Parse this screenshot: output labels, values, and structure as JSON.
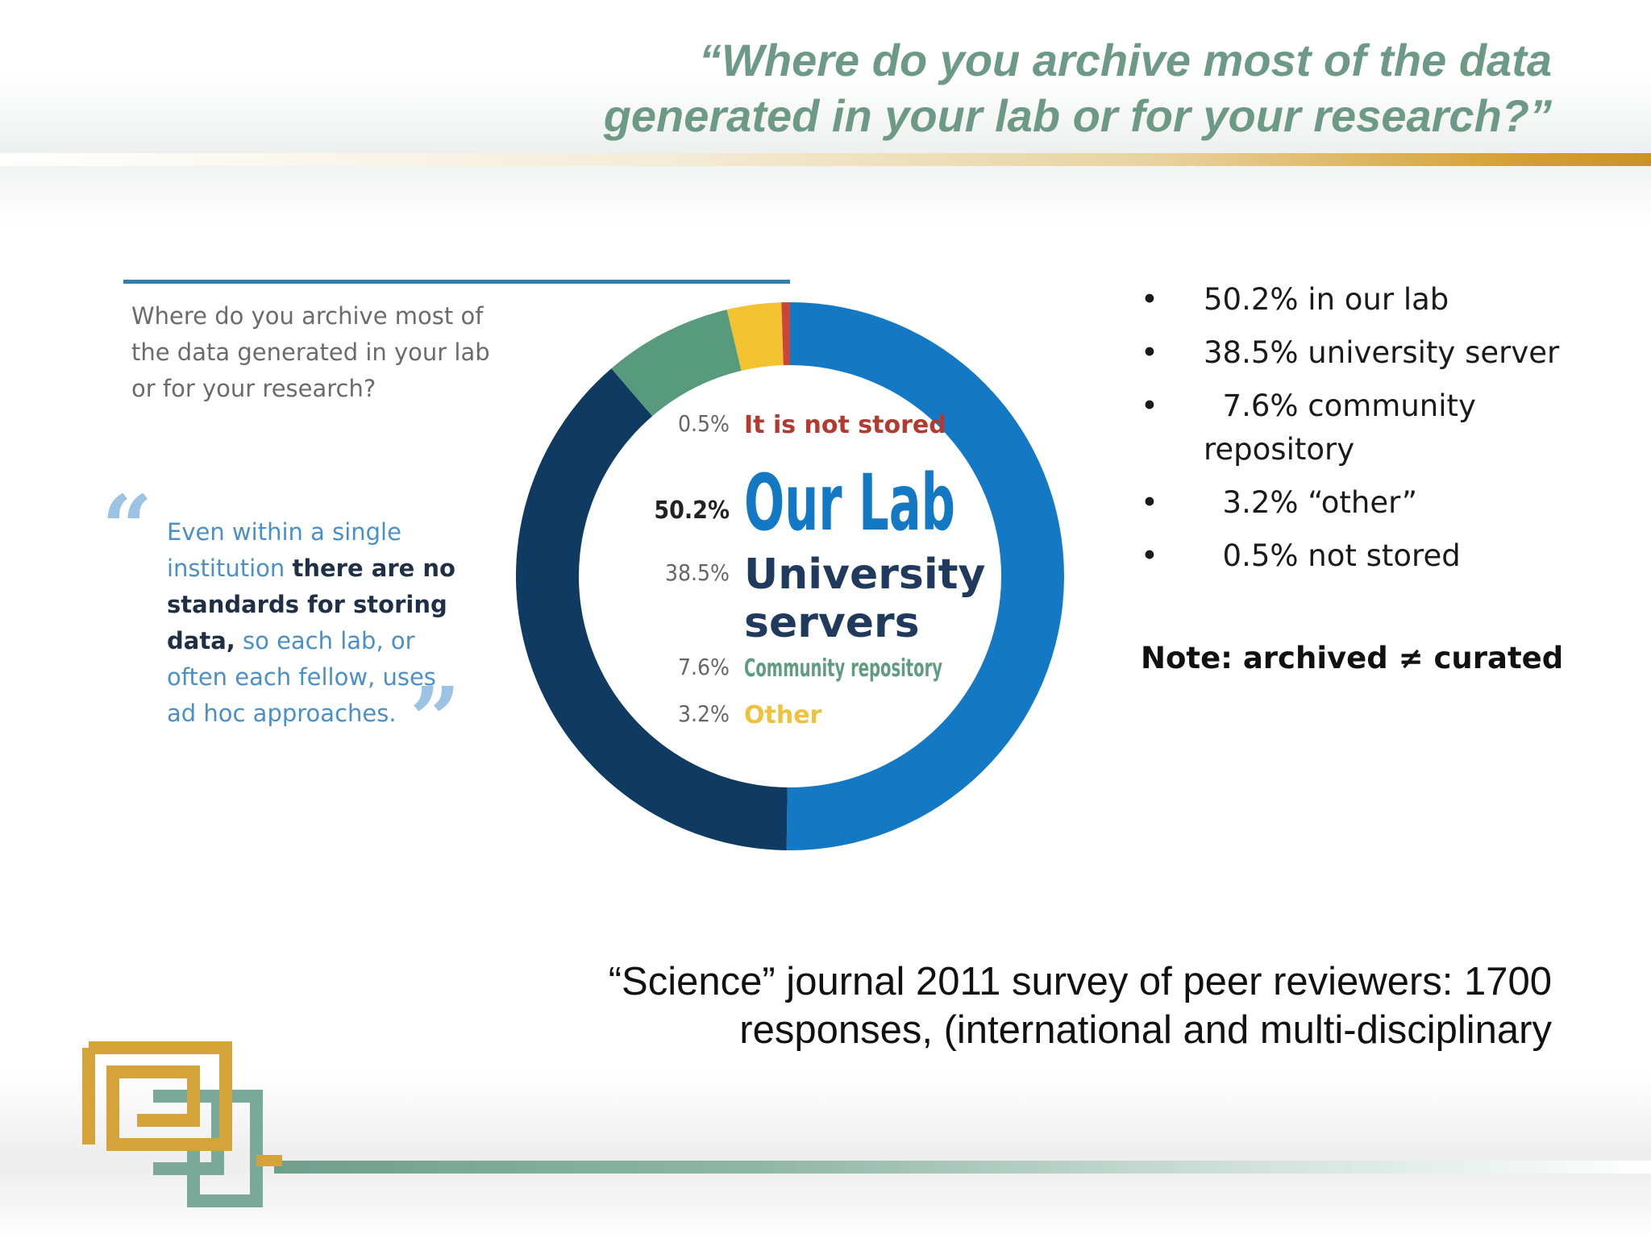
{
  "slide": {
    "title_lines": [
      "“Where do you archive most of the data",
      "generated in your lab or for your research?”"
    ],
    "bullets": [
      "50.2% in our lab",
      "38.5% university server",
      "  7.6% community repository",
      "  3.2% “other”",
      "  0.5% not stored"
    ],
    "bullet_symbol": "•",
    "note": "Note: archived ≠ curated",
    "source_lines": [
      "“Science” journal 2011 survey of peer reviewers: 1700",
      "responses, (international and multi-disciplinary"
    ]
  },
  "figure": {
    "question": "Where do you archive most of the data generated in your lab or for your research?",
    "quote": {
      "part1": "Even within a single institution ",
      "bold": "there are no standards for storing data,",
      "part2": " so each lab, or often each fellow, uses ad hoc approaches."
    },
    "quote_open": "“",
    "quote_close": "”"
  },
  "chart_data": {
    "type": "pie",
    "style": "donut",
    "categories": [
      "Our Lab",
      "University servers",
      "Community repository",
      "Other",
      "It is not stored"
    ],
    "values": [
      50.2,
      38.5,
      7.6,
      3.2,
      0.5
    ],
    "value_labels": [
      "50.2%",
      "38.5%",
      "7.6%",
      "3.2%",
      "0.5%"
    ],
    "colors": [
      "#1479c4",
      "#0f3a62",
      "#579a7d",
      "#f2c230",
      "#c8473a"
    ],
    "label_colors": [
      "#1479c4",
      "#1f3a5c",
      "#5f9c82",
      "#f0c23c",
      "#b33a2e"
    ],
    "label_sizes": [
      "large",
      "medium",
      "small",
      "small",
      "small"
    ]
  }
}
